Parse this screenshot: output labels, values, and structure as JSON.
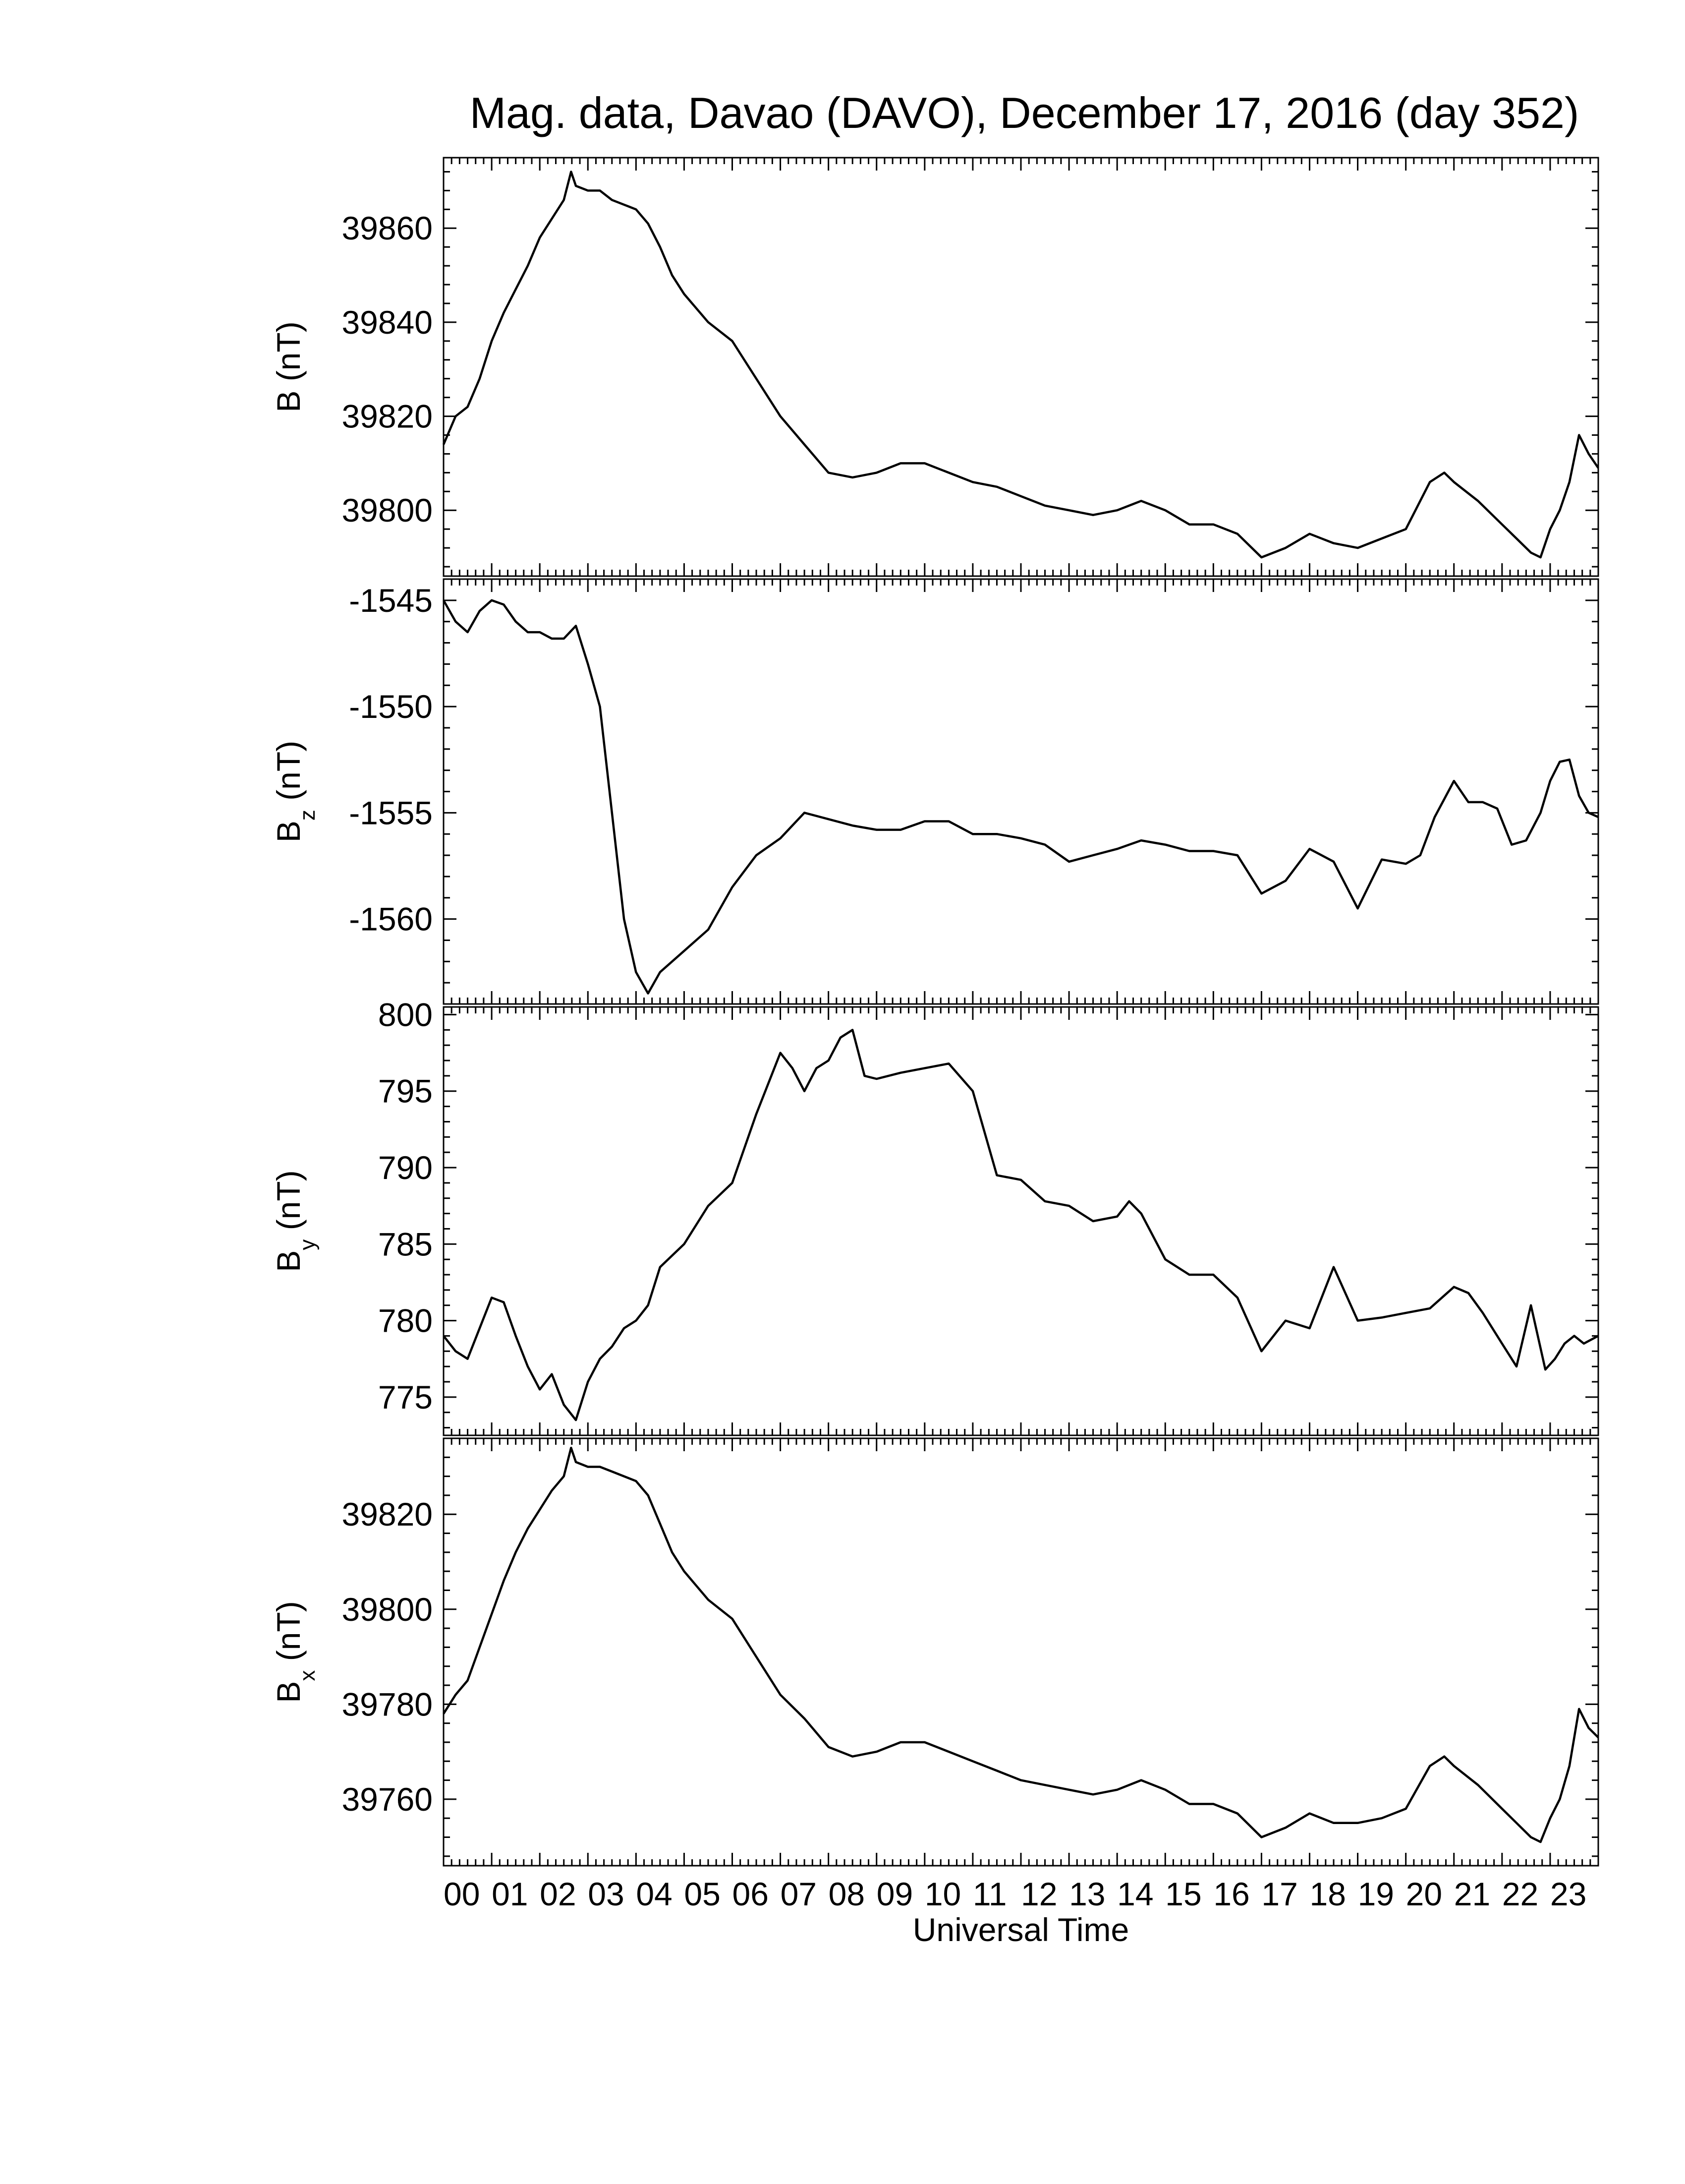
{
  "title": "Mag. data, Davao (DAVO), December 17, 2016 (day 352)",
  "xlabel": "Universal Time",
  "chart_data": {
    "type": "line",
    "title": "Mag. data, Davao (DAVO), December 17, 2016 (day 352)",
    "xlabel": "Universal Time",
    "xlim": [
      0,
      24
    ],
    "x_tick_labels": [
      "00",
      "01",
      "02",
      "03",
      "04",
      "05",
      "06",
      "07",
      "08",
      "09",
      "10",
      "11",
      "12",
      "13",
      "14",
      "15",
      "16",
      "17",
      "18",
      "19",
      "20",
      "21",
      "22",
      "23"
    ],
    "grid": false,
    "legend": "none",
    "line_color": "#000000",
    "panels": [
      {
        "id": "B",
        "ylabel_main": "B",
        "ylabel_sub": "",
        "ylabel_unit": "(nT)",
        "ylim": [
          39786,
          39875
        ],
        "y_ticks": [
          39800,
          39820,
          39840,
          39860
        ],
        "y_tick_labels": [
          "39800",
          "39820",
          "39840",
          "39860"
        ],
        "x": [
          0.0,
          0.25,
          0.5,
          0.75,
          1.0,
          1.25,
          1.5,
          1.75,
          2.0,
          2.25,
          2.5,
          2.65,
          2.75,
          3.0,
          3.25,
          3.5,
          3.75,
          4.0,
          4.25,
          4.5,
          4.75,
          5.0,
          5.5,
          6.0,
          6.5,
          7.0,
          7.5,
          8.0,
          8.5,
          9.0,
          9.5,
          10.0,
          10.5,
          11.0,
          11.5,
          12.0,
          12.5,
          13.0,
          13.5,
          14.0,
          14.5,
          15.0,
          15.5,
          16.0,
          16.5,
          17.0,
          17.5,
          18.0,
          18.5,
          19.0,
          19.5,
          20.0,
          20.5,
          20.8,
          21.0,
          21.5,
          22.0,
          22.3,
          22.6,
          22.8,
          23.0,
          23.2,
          23.4,
          23.6,
          23.8,
          24.0
        ],
        "y": [
          39814,
          39820,
          39822,
          39828,
          39836,
          39842,
          39847,
          39852,
          39858,
          39862,
          39866,
          39872,
          39869,
          39868,
          39868,
          39866,
          39865,
          39864,
          39861,
          39856,
          39850,
          39846,
          39840,
          39836,
          39828,
          39820,
          39814,
          39808,
          39807,
          39808,
          39810,
          39810,
          39808,
          39806,
          39805,
          39803,
          39801,
          39800,
          39799,
          39800,
          39802,
          39800,
          39797,
          39797,
          39795,
          39790,
          39792,
          39795,
          39793,
          39792,
          39794,
          39796,
          39806,
          39808,
          39806,
          39802,
          39797,
          39794,
          39791,
          39790,
          39796,
          39800,
          39806,
          39816,
          39812,
          39809
        ]
      },
      {
        "id": "Bz",
        "ylabel_main": "B",
        "ylabel_sub": "z",
        "ylabel_unit": "(nT)",
        "ylim": [
          -1564,
          -1544
        ],
        "y_ticks": [
          -1545,
          -1550,
          -1555,
          -1560
        ],
        "y_tick_labels": [
          "-1545",
          "-1550",
          "-1555",
          "-1560"
        ],
        "x": [
          0.0,
          0.25,
          0.5,
          0.75,
          1.0,
          1.25,
          1.5,
          1.75,
          2.0,
          2.25,
          2.5,
          2.75,
          3.0,
          3.25,
          3.5,
          3.75,
          4.0,
          4.25,
          4.5,
          5.0,
          5.5,
          6.0,
          6.5,
          7.0,
          7.5,
          8.0,
          8.5,
          9.0,
          9.5,
          10.0,
          10.5,
          11.0,
          11.5,
          12.0,
          12.5,
          13.0,
          13.5,
          14.0,
          14.5,
          15.0,
          15.5,
          16.0,
          16.5,
          17.0,
          17.5,
          18.0,
          18.5,
          19.0,
          19.5,
          20.0,
          20.3,
          20.6,
          21.0,
          21.3,
          21.6,
          21.9,
          22.2,
          22.5,
          22.8,
          23.0,
          23.2,
          23.4,
          23.6,
          23.8,
          24.0
        ],
        "y": [
          -1545,
          -1546,
          -1546.5,
          -1545.5,
          -1545,
          -1545.2,
          -1546,
          -1546.5,
          -1546.5,
          -1546.8,
          -1546.8,
          -1546.2,
          -1548,
          -1550,
          -1555,
          -1560,
          -1562.5,
          -1563.5,
          -1562.5,
          -1561.5,
          -1560.5,
          -1558.5,
          -1557,
          -1556.2,
          -1555,
          -1555.3,
          -1555.6,
          -1555.8,
          -1555.8,
          -1555.4,
          -1555.4,
          -1556,
          -1556,
          -1556.2,
          -1556.5,
          -1557.3,
          -1557,
          -1556.7,
          -1556.3,
          -1556.5,
          -1556.8,
          -1556.8,
          -1557,
          -1558.8,
          -1558.2,
          -1556.7,
          -1557.3,
          -1559.5,
          -1557.2,
          -1557.4,
          -1557,
          -1555.2,
          -1553.5,
          -1554.5,
          -1554.5,
          -1554.8,
          -1556.5,
          -1556.3,
          -1555,
          -1553.5,
          -1552.6,
          -1552.5,
          -1554.2,
          -1555,
          -1555.2
        ]
      },
      {
        "id": "By",
        "ylabel_main": "B",
        "ylabel_sub": "y",
        "ylabel_unit": "(nT)",
        "ylim": [
          772.5,
          800.5
        ],
        "y_ticks": [
          775,
          780,
          785,
          790,
          795,
          800
        ],
        "y_tick_labels": [
          "775",
          "780",
          "785",
          "790",
          "795",
          "800"
        ],
        "x": [
          0.0,
          0.25,
          0.5,
          0.75,
          1.0,
          1.25,
          1.5,
          1.75,
          2.0,
          2.25,
          2.5,
          2.75,
          3.0,
          3.25,
          3.5,
          3.75,
          4.0,
          4.25,
          4.5,
          5.0,
          5.5,
          6.0,
          6.5,
          7.0,
          7.25,
          7.5,
          7.75,
          8.0,
          8.25,
          8.5,
          8.75,
          9.0,
          9.5,
          10.0,
          10.5,
          11.0,
          11.5,
          12.0,
          12.5,
          13.0,
          13.5,
          14.0,
          14.25,
          14.5,
          15.0,
          15.5,
          16.0,
          16.5,
          17.0,
          17.5,
          18.0,
          18.5,
          19.0,
          19.5,
          20.0,
          20.5,
          21.0,
          21.3,
          21.6,
          22.0,
          22.3,
          22.6,
          22.9,
          23.1,
          23.3,
          23.5,
          23.7,
          24.0
        ],
        "y": [
          779,
          778,
          777.5,
          779.5,
          781.5,
          781.2,
          779,
          777,
          775.5,
          776.5,
          774.5,
          773.5,
          776,
          777.5,
          778.3,
          779.5,
          780,
          781,
          783.5,
          785,
          787.5,
          789,
          793.5,
          797.5,
          796.5,
          795,
          796.5,
          797,
          798.5,
          799,
          796,
          795.8,
          796.2,
          796.5,
          796.8,
          795,
          789.5,
          789.2,
          787.8,
          787.5,
          786.5,
          786.8,
          787.8,
          787,
          784,
          783,
          783,
          781.5,
          778,
          780,
          779.5,
          783.5,
          780,
          780.2,
          780.5,
          780.8,
          782.2,
          781.8,
          780.5,
          778.5,
          777,
          781,
          776.8,
          777.5,
          778.5,
          779,
          778.5,
          779
        ]
      },
      {
        "id": "Bx",
        "ylabel_main": "B",
        "ylabel_sub": "x",
        "ylabel_unit": "(nT)",
        "ylim": [
          39746,
          39836
        ],
        "y_ticks": [
          39760,
          39780,
          39800,
          39820
        ],
        "y_tick_labels": [
          "39760",
          "39780",
          "39800",
          "39820"
        ],
        "x": [
          0.0,
          0.25,
          0.5,
          0.75,
          1.0,
          1.25,
          1.5,
          1.75,
          2.0,
          2.25,
          2.5,
          2.65,
          2.75,
          3.0,
          3.25,
          3.5,
          3.75,
          4.0,
          4.25,
          4.5,
          4.75,
          5.0,
          5.5,
          6.0,
          6.5,
          7.0,
          7.5,
          8.0,
          8.5,
          9.0,
          9.5,
          10.0,
          10.5,
          11.0,
          11.5,
          12.0,
          12.5,
          13.0,
          13.5,
          14.0,
          14.5,
          15.0,
          15.5,
          16.0,
          16.5,
          17.0,
          17.5,
          18.0,
          18.5,
          19.0,
          19.5,
          20.0,
          20.5,
          20.8,
          21.0,
          21.5,
          22.0,
          22.3,
          22.6,
          22.8,
          23.0,
          23.2,
          23.4,
          23.6,
          23.8,
          24.0
        ],
        "y": [
          39778,
          39782,
          39785,
          39792,
          39799,
          39806,
          39812,
          39817,
          39821,
          39825,
          39828,
          39834,
          39831,
          39830,
          39830,
          39829,
          39828,
          39827,
          39824,
          39818,
          39812,
          39808,
          39802,
          39798,
          39790,
          39782,
          39777,
          39771,
          39769,
          39770,
          39772,
          39772,
          39770,
          39768,
          39766,
          39764,
          39763,
          39762,
          39761,
          39762,
          39764,
          39762,
          39759,
          39759,
          39757,
          39752,
          39754,
          39757,
          39755,
          39755,
          39756,
          39758,
          39767,
          39769,
          39767,
          39763,
          39758,
          39755,
          39752,
          39751,
          39756,
          39760,
          39767,
          39779,
          39775,
          39773
        ]
      }
    ]
  }
}
